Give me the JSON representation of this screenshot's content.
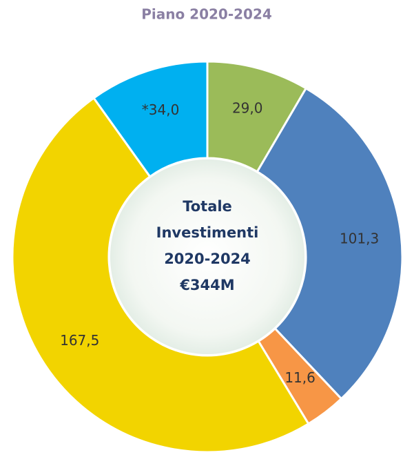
{
  "chart_data": {
    "type": "donut",
    "title": "Piano 2020-2024",
    "categories": [
      null,
      null,
      null,
      null,
      null
    ],
    "values": [
      29.0,
      101.3,
      11.6,
      167.5,
      34.0
    ],
    "value_labels": [
      "29,0",
      "101,3",
      "11,6",
      "167,5",
      "*34,0"
    ],
    "colors": [
      "#9bbb59",
      "#4f81bd",
      "#f79646",
      "#f2d400",
      "#00b0f0"
    ],
    "center_text": [
      "Totale",
      "Investimenti",
      "2020-2024",
      "€344M"
    ]
  }
}
